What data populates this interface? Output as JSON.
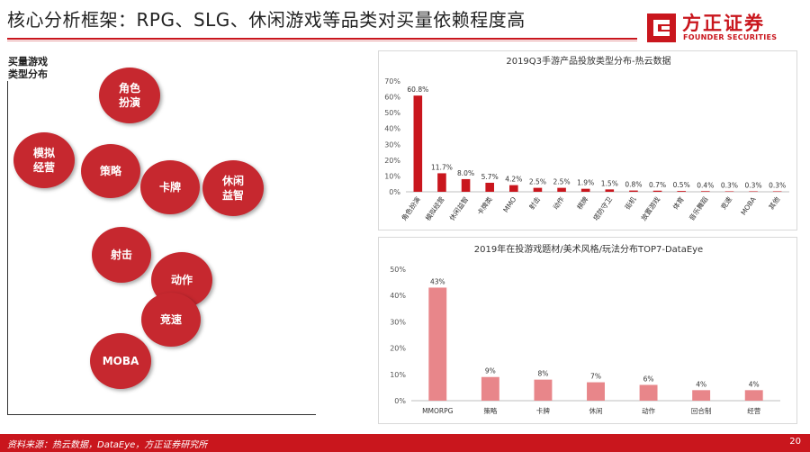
{
  "header": {
    "title": "核心分析框架：RPG、SLG、休闲游戏等品类对买量依赖程度高"
  },
  "logo": {
    "name_cn": "方正证券",
    "name_en": "FOUNDER SECURITIES",
    "brand_color": "#c9161d"
  },
  "bubble_map": {
    "y_axis_label_line1": "买量游戏",
    "y_axis_label_line2": "类型分布",
    "bubble_color": "#c6282f",
    "bubbles": [
      {
        "line1": "角色",
        "line2": "扮演"
      },
      {
        "line1": "模拟",
        "line2": "经营"
      },
      {
        "line1": "策略",
        "line2": ""
      },
      {
        "line1": "卡牌",
        "line2": ""
      },
      {
        "line1": "休闲",
        "line2": "益智"
      },
      {
        "line1": "射击",
        "line2": ""
      },
      {
        "line1": "动作",
        "line2": ""
      },
      {
        "line1": "竞速",
        "line2": ""
      },
      {
        "line1": "MOBA",
        "line2": ""
      }
    ]
  },
  "chart_data": [
    {
      "type": "bar",
      "title": "2019Q3手游产品投放类型分布-热云数据",
      "categories": [
        "角色扮演",
        "模拟经营",
        "休闲益智",
        "卡牌类",
        "MMO",
        "射击",
        "动作",
        "棋牌",
        "塔防守卫",
        "街机",
        "放置游戏",
        "体育",
        "音乐舞蹈",
        "竞速",
        "MOBA",
        "其他"
      ],
      "values": [
        60.8,
        11.7,
        8.0,
        5.7,
        4.2,
        2.5,
        2.5,
        1.9,
        1.5,
        0.8,
        0.7,
        0.5,
        0.4,
        0.3,
        0.3,
        0.3
      ],
      "value_labels": [
        "60.8%",
        "11.7%",
        "8.0%",
        "5.7%",
        "4.2%",
        "2.5%",
        "2.5%",
        "1.9%",
        "1.5%",
        "0.8%",
        "0.7%",
        "0.5%",
        "0.4%",
        "0.3%",
        "0.3%",
        "0.3%"
      ],
      "y_ticks": [
        "0%",
        "10%",
        "20%",
        "30%",
        "40%",
        "50%",
        "60%",
        "70%"
      ],
      "ylim": [
        0,
        70
      ],
      "bar_color": "#c9161d",
      "grid": false
    },
    {
      "type": "bar",
      "title": "2019年在投游戏题材/美术风格/玩法分布TOP7-DataEye",
      "categories": [
        "MMORPG",
        "策略",
        "卡牌",
        "休闲",
        "动作",
        "回合制",
        "经营"
      ],
      "values": [
        43,
        9,
        8,
        7,
        6,
        4,
        4
      ],
      "value_labels": [
        "43%",
        "9%",
        "8%",
        "7%",
        "6%",
        "4%",
        "4%"
      ],
      "y_ticks": [
        "0%",
        "10%",
        "20%",
        "30%",
        "40%",
        "50%"
      ],
      "ylim": [
        0,
        50
      ],
      "bar_color": "#e8868a",
      "grid": false
    }
  ],
  "footer": {
    "source": "资料来源：热云数据，DataEye，方正证券研究所",
    "page_number": "20"
  }
}
